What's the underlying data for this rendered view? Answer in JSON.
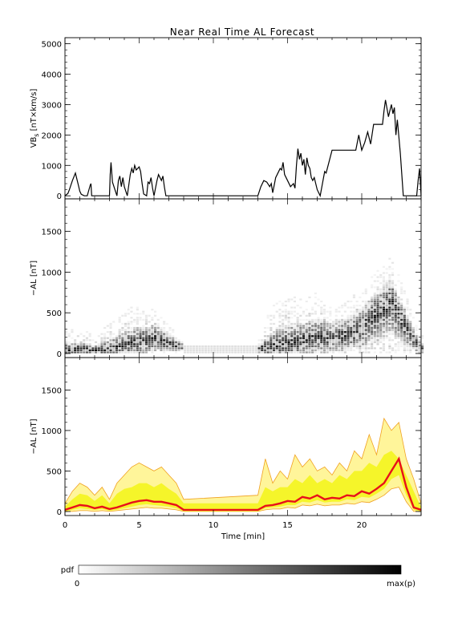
{
  "chart_data": [
    {
      "type": "line",
      "title": "Near Real Time AL Forecast",
      "ylabel": "VB",
      "ylabel_sub": "s",
      "ylabel_units": " [nT×km/s]",
      "xlim": [
        0,
        24
      ],
      "ylim": [
        -100,
        5200
      ],
      "yticks": [
        0,
        1000,
        2000,
        3000,
        4000,
        5000
      ],
      "series": [
        {
          "x": [
            0,
            0.2,
            0.3,
            0.5,
            0.7,
            0.9,
            1.0,
            1.1,
            1.3,
            1.5,
            1.7,
            1.75,
            1.8,
            2.0,
            3.0,
            3.05,
            3.1,
            3.2,
            3.5,
            3.6,
            3.7,
            3.8,
            3.9,
            4.0,
            4.2,
            4.4,
            4.5,
            4.6,
            4.7,
            4.8,
            4.9,
            5.0,
            5.1,
            5.2,
            5.3,
            5.5,
            5.6,
            5.7,
            5.8,
            5.9,
            6.0,
            6.2,
            6.3,
            6.5,
            6.6,
            6.7,
            6.8,
            7.0,
            13.0,
            13.2,
            13.4,
            13.6,
            13.8,
            13.9,
            14.0,
            14.1,
            14.2,
            14.3,
            14.5,
            14.6,
            14.7,
            14.8,
            15.0,
            15.2,
            15.4,
            15.5,
            15.6,
            15.7,
            15.8,
            15.9,
            16.0,
            16.1,
            16.2,
            16.3,
            16.4,
            16.5,
            16.6,
            16.7,
            16.8,
            17.0,
            17.2,
            17.5,
            17.6,
            18.0,
            18.2,
            18.5,
            18.6,
            18.8,
            19.0,
            19.2,
            19.4,
            19.6,
            19.8,
            20.0,
            20.2,
            20.4,
            20.6,
            20.8,
            21.0,
            21.2,
            21.4,
            21.5,
            21.6,
            21.8,
            21.9,
            22.0,
            22.1,
            22.2,
            22.3,
            22.4,
            22.6,
            22.8,
            23.0,
            23.2,
            23.5,
            23.7,
            23.8,
            23.9,
            24.0
          ],
          "y": [
            0,
            80,
            200,
            500,
            750,
            350,
            150,
            50,
            0,
            0,
            350,
            400,
            0,
            0,
            0,
            700,
            1100,
            450,
            0,
            500,
            650,
            300,
            600,
            300,
            0,
            700,
            900,
            750,
            1000,
            850,
            900,
            950,
            800,
            400,
            60,
            0,
            450,
            400,
            600,
            250,
            0,
            500,
            700,
            500,
            650,
            300,
            0,
            0,
            0,
            300,
            500,
            450,
            300,
            400,
            100,
            350,
            600,
            700,
            900,
            850,
            1100,
            700,
            500,
            300,
            400,
            250,
            1000,
            1550,
            1200,
            1400,
            1000,
            1200,
            700,
            1250,
            1000,
            900,
            600,
            500,
            600,
            200,
            0,
            800,
            750,
            1500,
            1500,
            1500,
            1500,
            1500,
            1500,
            1500,
            1500,
            1500,
            2000,
            1500,
            1750,
            2100,
            1700,
            2350,
            2350,
            2350,
            2350,
            2800,
            3150,
            2600,
            2800,
            3000,
            2700,
            2900,
            2000,
            2500,
            1400,
            0,
            0,
            0,
            0,
            0,
            500,
            900,
            0
          ]
        }
      ]
    },
    {
      "type": "heatmap",
      "ylabel": "−AL [nT]",
      "xlim": [
        0,
        24
      ],
      "ylim": [
        -50,
        1900
      ],
      "yticks": [
        0,
        500,
        1000,
        1500
      ],
      "cell_dx": 0.2,
      "cell_dy": 25,
      "note_values": "per-column stacks: [x, [y bins...], [darkness 0-1...]] generated from activity envelope",
      "activity": {
        "x": [
          0,
          1,
          2,
          3,
          4,
          5,
          6,
          7,
          8,
          13,
          14,
          15,
          16,
          17,
          18,
          19,
          20,
          21,
          22,
          23,
          24
        ],
        "median": [
          20,
          40,
          30,
          50,
          100,
          140,
          180,
          120,
          60,
          40,
          80,
          120,
          160,
          200,
          180,
          220,
          300,
          450,
          600,
          300,
          40
        ],
        "max": [
          250,
          300,
          200,
          350,
          500,
          600,
          550,
          350,
          120,
          120,
          600,
          700,
          650,
          750,
          550,
          650,
          800,
          1000,
          1200,
          700,
          200
        ]
      }
    },
    {
      "type": "area",
      "ylabel": "−AL [nT]",
      "xlabel": "Time [min]",
      "xlim": [
        0,
        24
      ],
      "ylim": [
        -50,
        1900
      ],
      "xticks": [
        0,
        5,
        10,
        15,
        20
      ],
      "yticks": [
        0,
        500,
        1000,
        1500
      ],
      "x": [
        0,
        0.5,
        1.0,
        1.5,
        2.0,
        2.5,
        3.0,
        3.5,
        4.0,
        4.5,
        5.0,
        5.5,
        6.0,
        6.5,
        7.0,
        7.5,
        8.0,
        13.0,
        13.5,
        14.0,
        14.5,
        15.0,
        15.5,
        16.0,
        16.5,
        17.0,
        17.5,
        18.0,
        18.5,
        19.0,
        19.5,
        20.0,
        20.5,
        21.0,
        21.5,
        22.0,
        22.5,
        23.0,
        23.5,
        24.0
      ],
      "series": [
        {
          "role": "outer-band-upper",
          "values": [
            100,
            250,
            350,
            300,
            200,
            300,
            150,
            350,
            450,
            550,
            600,
            550,
            500,
            550,
            450,
            350,
            150,
            200,
            650,
            350,
            500,
            400,
            700,
            550,
            650,
            500,
            550,
            450,
            600,
            500,
            750,
            650,
            950,
            700,
            1150,
            1000,
            1100,
            650,
            400,
            100
          ]
        },
        {
          "role": "inner-band-upper",
          "values": [
            60,
            150,
            220,
            200,
            130,
            200,
            100,
            220,
            280,
            300,
            350,
            350,
            300,
            350,
            280,
            220,
            100,
            100,
            300,
            250,
            300,
            300,
            400,
            350,
            450,
            350,
            400,
            350,
            450,
            400,
            500,
            500,
            600,
            550,
            700,
            750,
            650,
            450,
            250,
            50
          ]
        },
        {
          "role": "median",
          "values": [
            20,
            50,
            80,
            70,
            40,
            60,
            30,
            50,
            80,
            110,
            130,
            140,
            120,
            120,
            100,
            80,
            20,
            20,
            70,
            80,
            100,
            130,
            120,
            180,
            160,
            200,
            150,
            170,
            160,
            200,
            190,
            250,
            220,
            280,
            350,
            500,
            650,
            300,
            50,
            20
          ]
        },
        {
          "role": "inner-band-lower",
          "values": [
            0,
            20,
            40,
            30,
            20,
            30,
            10,
            20,
            40,
            60,
            80,
            90,
            80,
            70,
            60,
            40,
            0,
            0,
            40,
            50,
            60,
            80,
            80,
            120,
            110,
            140,
            110,
            120,
            120,
            150,
            140,
            180,
            170,
            220,
            280,
            400,
            450,
            200,
            20,
            0
          ]
        },
        {
          "role": "outer-band-lower",
          "values": [
            0,
            0,
            10,
            10,
            0,
            10,
            0,
            10,
            20,
            30,
            40,
            50,
            40,
            40,
            30,
            20,
            0,
            0,
            20,
            30,
            30,
            50,
            40,
            80,
            70,
            90,
            70,
            80,
            80,
            100,
            90,
            120,
            110,
            150,
            200,
            280,
            300,
            120,
            0,
            0
          ]
        }
      ],
      "colors": {
        "outer": "#fff59a",
        "inner": "#f5f52a",
        "outer_edge": "#f0a020",
        "median": "#e8101a"
      }
    }
  ],
  "colorbar": {
    "label": "pdf",
    "min_label": "0",
    "max_label": "max(p)"
  }
}
